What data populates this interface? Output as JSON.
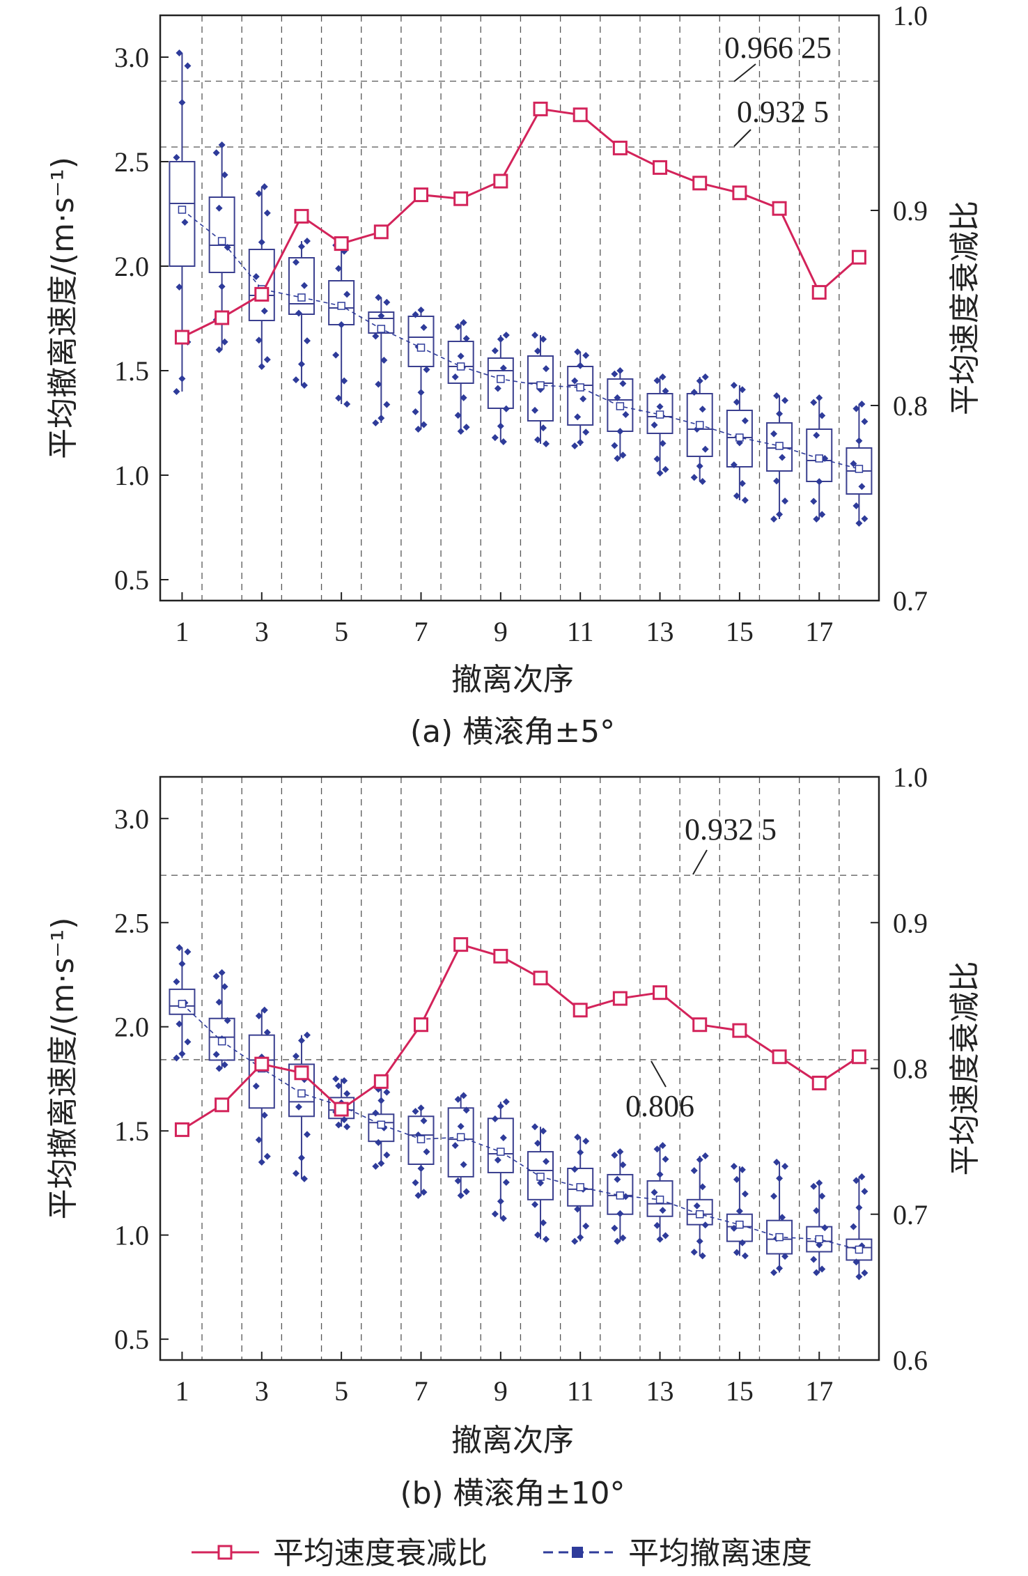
{
  "colors": {
    "ratio_line": "#d3235a",
    "speed_marker": "#2e3b9a",
    "box": "#3a3f8f",
    "frame": "#222222",
    "grid": "#555555"
  },
  "legend": {
    "ratio_label": "平均速度衰减比",
    "speed_label": "平均撤离速度"
  },
  "chart_data": [
    {
      "type": "box+line",
      "caption": "(a) 横滚角±5°",
      "xlabel": "撤离次序",
      "ylabel_left": "平均撤离速度/(m·s⁻¹)",
      "ylabel_right": "平均速度衰减比",
      "x_ticks": [
        1,
        3,
        5,
        7,
        9,
        11,
        13,
        15,
        17
      ],
      "xlim": [
        0.45,
        18.5
      ],
      "y_left_lim": [
        0.4,
        3.2
      ],
      "y_left_ticks": [
        "0.5",
        "1.0",
        "1.5",
        "2.0",
        "2.5",
        "3.0"
      ],
      "y_right_lim": [
        0.7,
        1.0
      ],
      "y_right_ticks": [
        "0.7",
        "0.8",
        "0.9",
        "1.0"
      ],
      "reference_lines": [
        {
          "value": 0.96625,
          "label": "0.966 25"
        },
        {
          "value": 0.9325,
          "label": "0.932 5"
        }
      ],
      "ratio_series": {
        "name": "平均速度衰减比",
        "x": [
          1,
          2,
          3,
          4,
          5,
          6,
          7,
          8,
          9,
          10,
          11,
          12,
          13,
          14,
          15,
          16,
          17,
          18
        ],
        "values": [
          0.835,
          0.845,
          0.857,
          0.897,
          0.883,
          0.889,
          0.908,
          0.906,
          0.915,
          0.952,
          0.949,
          0.932,
          0.922,
          0.914,
          0.909,
          0.901,
          0.858,
          0.876
        ]
      },
      "boxes": [
        {
          "x": 1,
          "q1": 2.0,
          "median": 2.3,
          "q3": 2.5,
          "min": 1.4,
          "max": 3.02,
          "mean": 2.27
        },
        {
          "x": 2,
          "q1": 1.97,
          "median": 2.1,
          "q3": 2.33,
          "min": 1.6,
          "max": 2.58,
          "mean": 2.12
        },
        {
          "x": 3,
          "q1": 1.74,
          "median": 1.86,
          "q3": 2.08,
          "min": 1.52,
          "max": 2.38,
          "mean": 1.89
        },
        {
          "x": 4,
          "q1": 1.77,
          "median": 1.82,
          "q3": 2.04,
          "min": 1.43,
          "max": 2.12,
          "mean": 1.85
        },
        {
          "x": 5,
          "q1": 1.72,
          "median": 1.8,
          "q3": 1.93,
          "min": 1.34,
          "max": 2.1,
          "mean": 1.81
        },
        {
          "x": 6,
          "q1": 1.68,
          "median": 1.75,
          "q3": 1.78,
          "min": 1.25,
          "max": 1.85,
          "mean": 1.7
        },
        {
          "x": 7,
          "q1": 1.52,
          "median": 1.66,
          "q3": 1.76,
          "min": 1.22,
          "max": 1.79,
          "mean": 1.61
        },
        {
          "x": 8,
          "q1": 1.44,
          "median": 1.52,
          "q3": 1.64,
          "min": 1.21,
          "max": 1.73,
          "mean": 1.52
        },
        {
          "x": 9,
          "q1": 1.32,
          "median": 1.5,
          "q3": 1.56,
          "min": 1.16,
          "max": 1.67,
          "mean": 1.46
        },
        {
          "x": 10,
          "q1": 1.26,
          "median": 1.44,
          "q3": 1.57,
          "min": 1.15,
          "max": 1.67,
          "mean": 1.43
        },
        {
          "x": 11,
          "q1": 1.24,
          "median": 1.43,
          "q3": 1.52,
          "min": 1.14,
          "max": 1.59,
          "mean": 1.42
        },
        {
          "x": 12,
          "q1": 1.21,
          "median": 1.36,
          "q3": 1.46,
          "min": 1.08,
          "max": 1.5,
          "mean": 1.33
        },
        {
          "x": 13,
          "q1": 1.2,
          "median": 1.28,
          "q3": 1.39,
          "min": 1.01,
          "max": 1.47,
          "mean": 1.29
        },
        {
          "x": 14,
          "q1": 1.09,
          "median": 1.22,
          "q3": 1.39,
          "min": 0.97,
          "max": 1.47,
          "mean": 1.24
        },
        {
          "x": 15,
          "q1": 1.04,
          "median": 1.18,
          "q3": 1.31,
          "min": 0.88,
          "max": 1.43,
          "mean": 1.18
        },
        {
          "x": 16,
          "q1": 1.02,
          "median": 1.13,
          "q3": 1.25,
          "min": 0.79,
          "max": 1.38,
          "mean": 1.14
        },
        {
          "x": 17,
          "q1": 0.97,
          "median": 1.07,
          "q3": 1.22,
          "min": 0.79,
          "max": 1.37,
          "mean": 1.08
        },
        {
          "x": 18,
          "q1": 0.91,
          "median": 1.02,
          "q3": 1.13,
          "min": 0.77,
          "max": 1.34,
          "mean": 1.03
        }
      ]
    },
    {
      "type": "box+line",
      "caption": "(b) 横滚角±10°",
      "xlabel": "撤离次序",
      "ylabel_left": "平均撤离速度/(m·s⁻¹)",
      "ylabel_right": "平均速度衰减比",
      "x_ticks": [
        1,
        3,
        5,
        7,
        9,
        11,
        13,
        15,
        17
      ],
      "xlim": [
        0.45,
        18.5
      ],
      "y_left_lim": [
        0.4,
        3.2
      ],
      "y_left_ticks": [
        "0.5",
        "1.0",
        "1.5",
        "2.0",
        "2.5",
        "3.0"
      ],
      "y_right_lim": [
        0.6,
        1.0
      ],
      "y_right_ticks": [
        "0.6",
        "0.7",
        "0.8",
        "0.9",
        "1.0"
      ],
      "reference_lines": [
        {
          "value": 0.9325,
          "label": "0.932 5"
        },
        {
          "value": 0.806,
          "label": "0.806"
        }
      ],
      "ratio_series": {
        "name": "平均速度衰减比",
        "x": [
          1,
          2,
          3,
          4,
          5,
          6,
          7,
          8,
          9,
          10,
          11,
          12,
          13,
          14,
          15,
          16,
          17,
          18
        ],
        "values": [
          0.758,
          0.775,
          0.803,
          0.797,
          0.772,
          0.791,
          0.83,
          0.885,
          0.877,
          0.862,
          0.84,
          0.848,
          0.852,
          0.83,
          0.826,
          0.808,
          0.79,
          0.808
        ]
      },
      "boxes": [
        {
          "x": 1,
          "q1": 2.06,
          "median": 2.1,
          "q3": 2.18,
          "min": 1.85,
          "max": 2.38,
          "mean": 2.11
        },
        {
          "x": 2,
          "q1": 1.84,
          "median": 1.95,
          "q3": 2.04,
          "min": 1.8,
          "max": 2.26,
          "mean": 1.93
        },
        {
          "x": 3,
          "q1": 1.61,
          "median": 1.84,
          "q3": 1.96,
          "min": 1.35,
          "max": 2.08,
          "mean": 1.8
        },
        {
          "x": 4,
          "q1": 1.57,
          "median": 1.64,
          "q3": 1.82,
          "min": 1.27,
          "max": 1.96,
          "mean": 1.68
        },
        {
          "x": 5,
          "q1": 1.56,
          "median": 1.6,
          "q3": 1.66,
          "min": 1.52,
          "max": 1.75,
          "mean": 1.62
        },
        {
          "x": 6,
          "q1": 1.45,
          "median": 1.54,
          "q3": 1.58,
          "min": 1.33,
          "max": 1.7,
          "mean": 1.53
        },
        {
          "x": 7,
          "q1": 1.34,
          "median": 1.48,
          "q3": 1.57,
          "min": 1.19,
          "max": 1.61,
          "mean": 1.46
        },
        {
          "x": 8,
          "q1": 1.28,
          "median": 1.46,
          "q3": 1.61,
          "min": 1.19,
          "max": 1.67,
          "mean": 1.47
        },
        {
          "x": 9,
          "q1": 1.3,
          "median": 1.39,
          "q3": 1.56,
          "min": 1.08,
          "max": 1.64,
          "mean": 1.4
        },
        {
          "x": 10,
          "q1": 1.17,
          "median": 1.31,
          "q3": 1.4,
          "min": 0.98,
          "max": 1.52,
          "mean": 1.28
        },
        {
          "x": 11,
          "q1": 1.14,
          "median": 1.22,
          "q3": 1.32,
          "min": 0.97,
          "max": 1.47,
          "mean": 1.23
        },
        {
          "x": 12,
          "q1": 1.1,
          "median": 1.19,
          "q3": 1.29,
          "min": 0.97,
          "max": 1.4,
          "mean": 1.19
        },
        {
          "x": 13,
          "q1": 1.09,
          "median": 1.15,
          "q3": 1.26,
          "min": 0.98,
          "max": 1.43,
          "mean": 1.17
        },
        {
          "x": 14,
          "q1": 1.05,
          "median": 1.1,
          "q3": 1.17,
          "min": 0.9,
          "max": 1.38,
          "mean": 1.1
        },
        {
          "x": 15,
          "q1": 0.97,
          "median": 1.04,
          "q3": 1.1,
          "min": 0.9,
          "max": 1.33,
          "mean": 1.05
        },
        {
          "x": 16,
          "q1": 0.91,
          "median": 0.98,
          "q3": 1.07,
          "min": 0.82,
          "max": 1.35,
          "mean": 0.99
        },
        {
          "x": 17,
          "q1": 0.92,
          "median": 0.97,
          "q3": 1.04,
          "min": 0.82,
          "max": 1.25,
          "mean": 0.98
        },
        {
          "x": 18,
          "q1": 0.88,
          "median": 0.94,
          "q3": 0.98,
          "min": 0.8,
          "max": 1.28,
          "mean": 0.93
        }
      ]
    }
  ]
}
